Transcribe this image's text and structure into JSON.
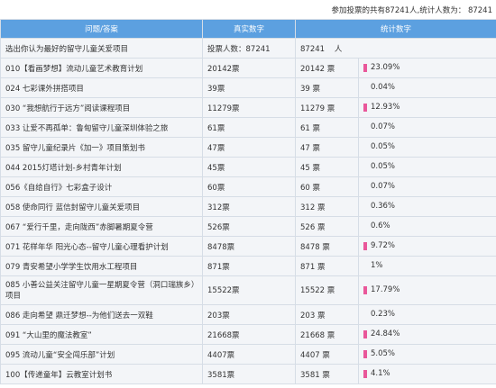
{
  "summary": "参加投票的共有87241人,统计人数为： 87241",
  "headers": {
    "question": "问题/答案",
    "real": "真实数字",
    "stats": "统计数字"
  },
  "question_row": {
    "label": "选出你认为最好的留守儿童关爱项目",
    "real": "投票人数：87241",
    "count": "87241",
    "unit": "人"
  },
  "accent": "#e9579a",
  "rows": [
    {
      "label": "010【看画梦想】流动儿童艺术教育计划",
      "real": "20142票",
      "count": "20142",
      "unit": "票",
      "pct": "23.09%",
      "bar": true
    },
    {
      "label": "024 七彩课外拼搭项目",
      "real": "39票",
      "count": "39",
      "unit": "票",
      "pct": "0.04%",
      "bar": false
    },
    {
      "label": "030 “我想航行于远方”阅读课程项目",
      "real": "11279票",
      "count": "11279",
      "unit": "票",
      "pct": "12.93%",
      "bar": true
    },
    {
      "label": "033 让爱不再孤单：鲁甸留守儿童深圳体验之旅",
      "real": "61票",
      "count": "61",
      "unit": "票",
      "pct": "0.07%",
      "bar": false
    },
    {
      "label": "035 留守儿童纪录片《加一》项目策划书",
      "real": "47票",
      "count": "47",
      "unit": "票",
      "pct": "0.05%",
      "bar": false
    },
    {
      "label": "044 2015灯塔计划-乡村青年计划",
      "real": "45票",
      "count": "45",
      "unit": "票",
      "pct": "0.05%",
      "bar": false
    },
    {
      "label": "056《自给自行》七彩盒子设计",
      "real": "60票",
      "count": "60",
      "unit": "票",
      "pct": "0.07%",
      "bar": false
    },
    {
      "label": "058 使命同行 蓝信封留守儿童关爱项目",
      "real": "312票",
      "count": "312",
      "unit": "票",
      "pct": "0.36%",
      "bar": false
    },
    {
      "label": "067 “爱行千里，走向陇西”赤脚暑期夏令营",
      "real": "526票",
      "count": "526",
      "unit": "票",
      "pct": "0.6%",
      "bar": false
    },
    {
      "label": "071 花样年华 阳光心态--留守儿童心理看护计划",
      "real": "8478票",
      "count": "8478",
      "unit": "票",
      "pct": "9.72%",
      "bar": true
    },
    {
      "label": "079 青安希望小学学生饮用水工程项目",
      "real": "871票",
      "count": "871",
      "unit": "票",
      "pct": "1%",
      "bar": false
    },
    {
      "label": "085 小善公益关注留守儿童一星期夏令营（洞口瑞族乡）项目",
      "real": "15522票",
      "count": "15522",
      "unit": "票",
      "pct": "17.79%",
      "bar": true,
      "tall": true
    },
    {
      "label": "086 走向希望 鼎迁梦想--为他们送去一双鞋",
      "real": "203票",
      "count": "203",
      "unit": "票",
      "pct": "0.23%",
      "bar": false
    },
    {
      "label": "091 “大山里的魔法教室”",
      "real": "21668票",
      "count": "21668",
      "unit": "票",
      "pct": "24.84%",
      "bar": true
    },
    {
      "label": "095 流动儿童“安全闯乐部”计划",
      "real": "4407票",
      "count": "4407",
      "unit": "票",
      "pct": "5.05%",
      "bar": true
    },
    {
      "label": "100【传递童年】云教室计划书",
      "real": "3581票",
      "count": "3581",
      "unit": "票",
      "pct": "4.1%",
      "bar": true
    }
  ]
}
